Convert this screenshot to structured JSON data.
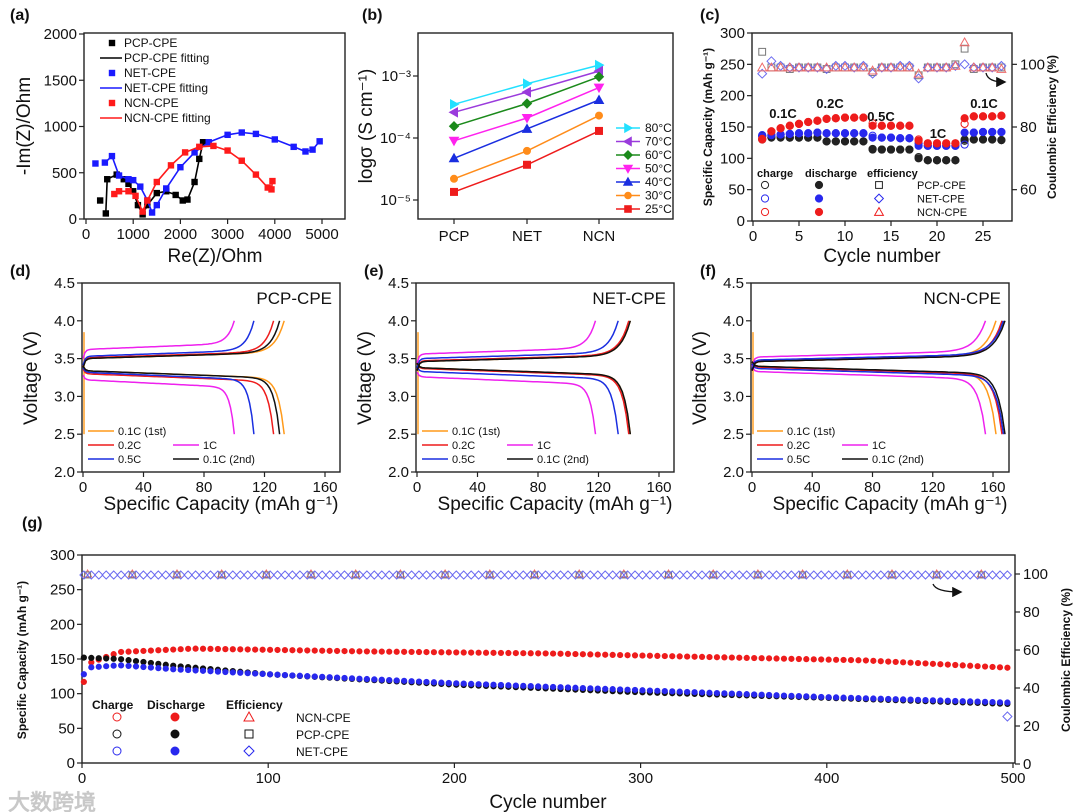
{
  "figure": {
    "watermark": "大数跨境"
  },
  "chart_data": [
    {
      "panel": "(a)",
      "type": "scatter",
      "xlabel": "Re(Z)/Ohm",
      "ylabel": "-Im(Z)/Ohm",
      "xlim": [
        0,
        5000
      ],
      "ylim": [
        0,
        2000
      ],
      "xticks": [
        0,
        1000,
        2000,
        3000,
        4000,
        5000
      ],
      "yticks": [
        0,
        500,
        1000,
        1500,
        2000
      ],
      "legend": [
        "PCP-CPE",
        "PCP-CPE fitting",
        "NET-CPE",
        "NET-CPE fitting",
        "NCN-CPE",
        "NCN-CPE fitting"
      ],
      "series": [
        {
          "name": "PCP-CPE",
          "color": "#000000",
          "points": [
            [
              300,
              200
            ],
            [
              420,
              60
            ],
            [
              450,
              430
            ],
            [
              650,
              480
            ],
            [
              800,
              430
            ],
            [
              900,
              380
            ],
            [
              1000,
              300
            ],
            [
              1100,
              150
            ],
            [
              1200,
              50
            ],
            [
              1300,
              150
            ],
            [
              1500,
              280
            ],
            [
              1700,
              300
            ],
            [
              1900,
              260
            ],
            [
              2050,
              200
            ],
            [
              2150,
              210
            ],
            [
              2300,
              400
            ],
            [
              2400,
              650
            ],
            [
              2480,
              830
            ]
          ]
        },
        {
          "name": "NET-CPE",
          "color": "#1a1aff",
          "points": [
            [
              200,
              600
            ],
            [
              400,
              610
            ],
            [
              550,
              680
            ],
            [
              700,
              470
            ],
            [
              900,
              430
            ],
            [
              1000,
              420
            ],
            [
              1150,
              350
            ],
            [
              1300,
              200
            ],
            [
              1400,
              70
            ],
            [
              1500,
              150
            ],
            [
              1700,
              330
            ],
            [
              2000,
              560
            ],
            [
              2300,
              720
            ],
            [
              2600,
              830
            ],
            [
              3000,
              910
            ],
            [
              3300,
              935
            ],
            [
              3600,
              920
            ],
            [
              4000,
              860
            ],
            [
              4400,
              780
            ],
            [
              4650,
              730
            ],
            [
              4800,
              750
            ],
            [
              4950,
              840
            ]
          ]
        },
        {
          "name": "NCN-CPE",
          "color": "#ff1a1a",
          "points": [
            [
              600,
              270
            ],
            [
              700,
              300
            ],
            [
              900,
              300
            ],
            [
              1050,
              250
            ],
            [
              1200,
              80
            ],
            [
              1300,
              200
            ],
            [
              1500,
              400
            ],
            [
              1800,
              580
            ],
            [
              2100,
              720
            ],
            [
              2400,
              780
            ],
            [
              2700,
              790
            ],
            [
              3000,
              740
            ],
            [
              3300,
              630
            ],
            [
              3600,
              480
            ],
            [
              3850,
              340
            ],
            [
              3930,
              320
            ],
            [
              3950,
              410
            ]
          ]
        }
      ]
    },
    {
      "panel": "(b)",
      "type": "line",
      "xlabel": "",
      "ylabel": "logσ (S cm⁻¹)",
      "categories": [
        "PCP",
        "NET",
        "NCN"
      ],
      "yscale": "log",
      "ylim": [
        5e-06,
        0.005
      ],
      "yticks": [
        "10⁻⁵",
        "10⁻⁴",
        "10⁻³"
      ],
      "ytick_values": [
        1e-05,
        0.0001,
        0.001
      ],
      "series": [
        {
          "name": "80°C",
          "color": "#22e0ff",
          "marker": "right",
          "values": [
            0.00035,
            0.00075,
            0.0015
          ]
        },
        {
          "name": "70°C",
          "color": "#9a3bdc",
          "marker": "left",
          "values": [
            0.00026,
            0.00055,
            0.0012
          ]
        },
        {
          "name": "60°C",
          "color": "#1b8a1b",
          "marker": "diamond",
          "values": [
            0.000155,
            0.00036,
            0.00097
          ]
        },
        {
          "name": "50°C",
          "color": "#ff22ee",
          "marker": "down",
          "values": [
            9e-05,
            0.00021,
            0.00065
          ]
        },
        {
          "name": "40°C",
          "color": "#1a2ee0",
          "marker": "up",
          "values": [
            4.7e-05,
            0.00014,
            0.00041
          ]
        },
        {
          "name": "30°C",
          "color": "#ff8c1a",
          "marker": "circle",
          "values": [
            2.2e-05,
            6.2e-05,
            0.00023
          ]
        },
        {
          "name": "25°C",
          "color": "#ee1c1c",
          "marker": "square",
          "values": [
            1.35e-05,
            3.7e-05,
            0.00013
          ]
        }
      ]
    },
    {
      "panel": "(c)",
      "type": "scatter",
      "xlabel": "Cycle number",
      "ylabel": "Specific Capacity (mAh g⁻¹)",
      "ylabel_right": "Coulombic Efficiency (%)",
      "xlim": [
        0,
        28
      ],
      "ylim": [
        0,
        300
      ],
      "ylim_right": [
        50,
        110
      ],
      "xticks": [
        0,
        5,
        10,
        15,
        20,
        25
      ],
      "yticks": [
        0,
        50,
        100,
        150,
        200,
        250,
        300
      ],
      "yticks_right": [
        60,
        80,
        100
      ],
      "legend_headers": [
        "charge",
        "discharge",
        "efficiency"
      ],
      "rate_labels": [
        "0.1C",
        "0.2C",
        "0.5C",
        "1C",
        "0.1C"
      ],
      "series": [
        {
          "name": "PCP-CPE",
          "color": "#222222",
          "eff_marker": "square",
          "discharge": [
            130,
            133,
            133,
            133,
            133,
            133,
            133,
            127,
            127,
            127,
            127,
            127,
            114,
            114,
            114,
            114,
            114,
            100,
            97,
            97,
            97,
            97,
            130,
            130,
            130,
            130,
            129
          ],
          "charge": [
            136,
            134,
            134,
            133,
            133,
            133,
            133,
            127,
            127,
            127,
            127,
            127,
            115,
            114,
            114,
            114,
            114,
            102,
            97,
            97,
            97,
            97,
            128,
            130,
            130,
            130,
            129
          ],
          "efficiency": [
            104,
            99,
            99,
            98.5,
            99,
            99,
            99,
            98.5,
            99,
            99,
            99,
            99,
            97.5,
            99,
            99,
            99,
            99,
            96.5,
            99,
            99,
            99,
            100,
            105,
            98.5,
            99,
            99,
            99
          ]
        },
        {
          "name": "NET-CPE",
          "color": "#2828ee",
          "eff_marker": "diamond",
          "discharge": [
            135,
            137,
            138,
            139,
            140,
            140,
            141,
            140,
            140,
            140,
            140,
            140,
            133,
            133,
            133,
            132,
            132,
            120,
            120,
            120,
            120,
            120,
            141,
            141,
            142,
            142,
            142
          ],
          "charge": [
            137,
            137,
            138,
            139,
            140,
            140,
            141,
            140,
            140,
            140,
            140,
            140,
            136,
            133,
            133,
            132,
            132,
            124,
            120,
            120,
            120,
            120,
            122,
            141,
            142,
            142,
            142
          ],
          "efficiency": [
            97,
            101,
            99.5,
            99,
            99,
            99,
            99,
            98.5,
            99.5,
            99.5,
            99,
            99.5,
            97,
            99,
            99,
            99.5,
            99.5,
            95.5,
            99,
            99,
            99,
            99.5,
            100,
            99,
            99,
            99,
            99.5
          ]
        },
        {
          "name": "NCN-CPE",
          "color": "#ee1c1c",
          "eff_marker": "triangle",
          "discharge": [
            130,
            143,
            148,
            152,
            155,
            158,
            160,
            163,
            164,
            165,
            165,
            165,
            152,
            152,
            152,
            152,
            152,
            128,
            124,
            124,
            124,
            124,
            164,
            167,
            167,
            167,
            168
          ],
          "charge": [
            131,
            143,
            148,
            152,
            155,
            158,
            160,
            163,
            164,
            165,
            165,
            165,
            156,
            152,
            152,
            152,
            152,
            130,
            124,
            124,
            124,
            124,
            155,
            167,
            167,
            167,
            168
          ],
          "efficiency": [
            99,
            99,
            99,
            99,
            99,
            99,
            99,
            99,
            99,
            99,
            99,
            99,
            98,
            99,
            99,
            99,
            99,
            97,
            99,
            99,
            99,
            99.5,
            107,
            99,
            99,
            99,
            98.5
          ]
        }
      ]
    },
    {
      "panel": "(d)",
      "type": "line",
      "title": "PCP-CPE",
      "xlabel": "Specific Capacity (mAh g⁻¹)",
      "ylabel": "Voltage (V)",
      "xlim": [
        0,
        170
      ],
      "ylim": [
        2.0,
        4.5
      ],
      "xticks": [
        0,
        40,
        80,
        120,
        160
      ],
      "yticks": [
        "2.0",
        "2.5",
        "3.0",
        "3.5",
        "4.0",
        "4.5"
      ],
      "series": [
        {
          "name": "0.1C (1st)",
          "color": "#ff9a1a",
          "capacity": 133,
          "charge_plateau": 3.5,
          "discharge_plateau": 3.34
        },
        {
          "name": "0.2C",
          "color": "#ee1c1c",
          "capacity": 126,
          "charge_plateau": 3.51,
          "discharge_plateau": 3.3
        },
        {
          "name": "1C",
          "color": "#ee22ee",
          "capacity": 100,
          "charge_plateau": 3.62,
          "discharge_plateau": 3.22
        },
        {
          "name": "0.5C",
          "color": "#1a2ee0",
          "capacity": 113,
          "charge_plateau": 3.53,
          "discharge_plateau": 3.32
        },
        {
          "name": "0.1C (2nd)",
          "color": "#111111",
          "capacity": 130,
          "charge_plateau": 3.5,
          "discharge_plateau": 3.34
        }
      ]
    },
    {
      "panel": "(e)",
      "type": "line",
      "title": "NET-CPE",
      "xlabel": "Specific Capacity (mAh g⁻¹)",
      "ylabel": "Voltage (V)",
      "xlim": [
        0,
        170
      ],
      "ylim": [
        2.0,
        4.5
      ],
      "xticks": [
        0,
        40,
        80,
        120,
        160
      ],
      "yticks": [
        "2.0",
        "2.5",
        "3.0",
        "3.5",
        "4.0",
        "4.5"
      ],
      "series": [
        {
          "name": "0.1C (1st)",
          "color": "#ff9a1a",
          "capacity": 141,
          "charge_plateau": 3.46,
          "discharge_plateau": 3.38
        },
        {
          "name": "0.2C",
          "color": "#ee1c1c",
          "capacity": 140,
          "charge_plateau": 3.47,
          "discharge_plateau": 3.37
        },
        {
          "name": "1C",
          "color": "#ee22ee",
          "capacity": 118,
          "charge_plateau": 3.56,
          "discharge_plateau": 3.26
        },
        {
          "name": "0.5C",
          "color": "#1a2ee0",
          "capacity": 133,
          "charge_plateau": 3.5,
          "discharge_plateau": 3.33
        },
        {
          "name": "0.1C (2nd)",
          "color": "#111111",
          "capacity": 141,
          "charge_plateau": 3.46,
          "discharge_plateau": 3.38
        }
      ]
    },
    {
      "panel": "(f)",
      "type": "line",
      "title": "NCN-CPE",
      "xlabel": "Specific Capacity (mAh g⁻¹)",
      "ylabel": "Voltage (V)",
      "xlim": [
        0,
        170
      ],
      "ylim": [
        2.0,
        4.5
      ],
      "xticks": [
        0,
        40,
        80,
        120,
        160
      ],
      "yticks": [
        "2.0",
        "2.5",
        "3.0",
        "3.5",
        "4.0",
        "4.5"
      ],
      "series": [
        {
          "name": "0.1C (1st)",
          "color": "#ff9a1a",
          "capacity": 162,
          "charge_plateau": 3.46,
          "discharge_plateau": 3.4
        },
        {
          "name": "0.2C",
          "color": "#ee1c1c",
          "capacity": 166,
          "charge_plateau": 3.46,
          "discharge_plateau": 3.39
        },
        {
          "name": "1C",
          "color": "#ee22ee",
          "capacity": 155,
          "charge_plateau": 3.52,
          "discharge_plateau": 3.33
        },
        {
          "name": "0.5C",
          "color": "#1a2ee0",
          "capacity": 167,
          "charge_plateau": 3.48,
          "discharge_plateau": 3.37
        },
        {
          "name": "0.1C (2nd)",
          "color": "#111111",
          "capacity": 168,
          "charge_plateau": 3.46,
          "discharge_plateau": 3.4
        }
      ]
    },
    {
      "panel": "(g)",
      "type": "scatter",
      "xlabel": "Cycle number",
      "ylabel": "Specific Capacity (mAh g⁻¹)",
      "ylabel_right": "Coulombic Efficiency (%)",
      "xlim": [
        0,
        500
      ],
      "ylim": [
        0,
        300
      ],
      "ylim_right": [
        0,
        110
      ],
      "xticks": [
        0,
        100,
        200,
        300,
        400,
        500
      ],
      "yticks": [
        0,
        50,
        100,
        150,
        200,
        250,
        300
      ],
      "yticks_right": [
        0,
        20,
        40,
        60,
        80,
        100
      ],
      "legend_headers": [
        "Charge",
        "Discharge",
        "Efficiency"
      ],
      "series": [
        {
          "name": "NCN-CPE",
          "color": "#ee1c1c",
          "eff_marker": "triangle",
          "efficiency": 99.5,
          "discharge_keypoints": [
            [
              1,
              117
            ],
            [
              5,
              145
            ],
            [
              20,
              160
            ],
            [
              60,
              165
            ],
            [
              150,
              161
            ],
            [
              250,
              158
            ],
            [
              350,
              152
            ],
            [
              420,
              148
            ],
            [
              450,
              144
            ],
            [
              500,
              137
            ]
          ]
        },
        {
          "name": "PCP-CPE",
          "color": "#111111",
          "eff_marker": "square",
          "efficiency": 99.5,
          "discharge_keypoints": [
            [
              1,
              152
            ],
            [
              20,
              150
            ],
            [
              50,
              140
            ],
            [
              100,
              128
            ],
            [
              200,
              113
            ],
            [
              300,
              102
            ],
            [
              400,
              94
            ],
            [
              500,
              85
            ]
          ]
        },
        {
          "name": "NET-CPE",
          "color": "#2828ee",
          "eff_marker": "diamond",
          "efficiency": 99.5,
          "discharge_keypoints": [
            [
              1,
              128
            ],
            [
              5,
              138
            ],
            [
              20,
              141
            ],
            [
              50,
              135
            ],
            [
              100,
              128
            ],
            [
              200,
              115
            ],
            [
              300,
              105
            ],
            [
              400,
              95
            ],
            [
              500,
              87
            ]
          ],
          "efficiency_outlier": [
            497,
            25
          ]
        }
      ]
    }
  ]
}
